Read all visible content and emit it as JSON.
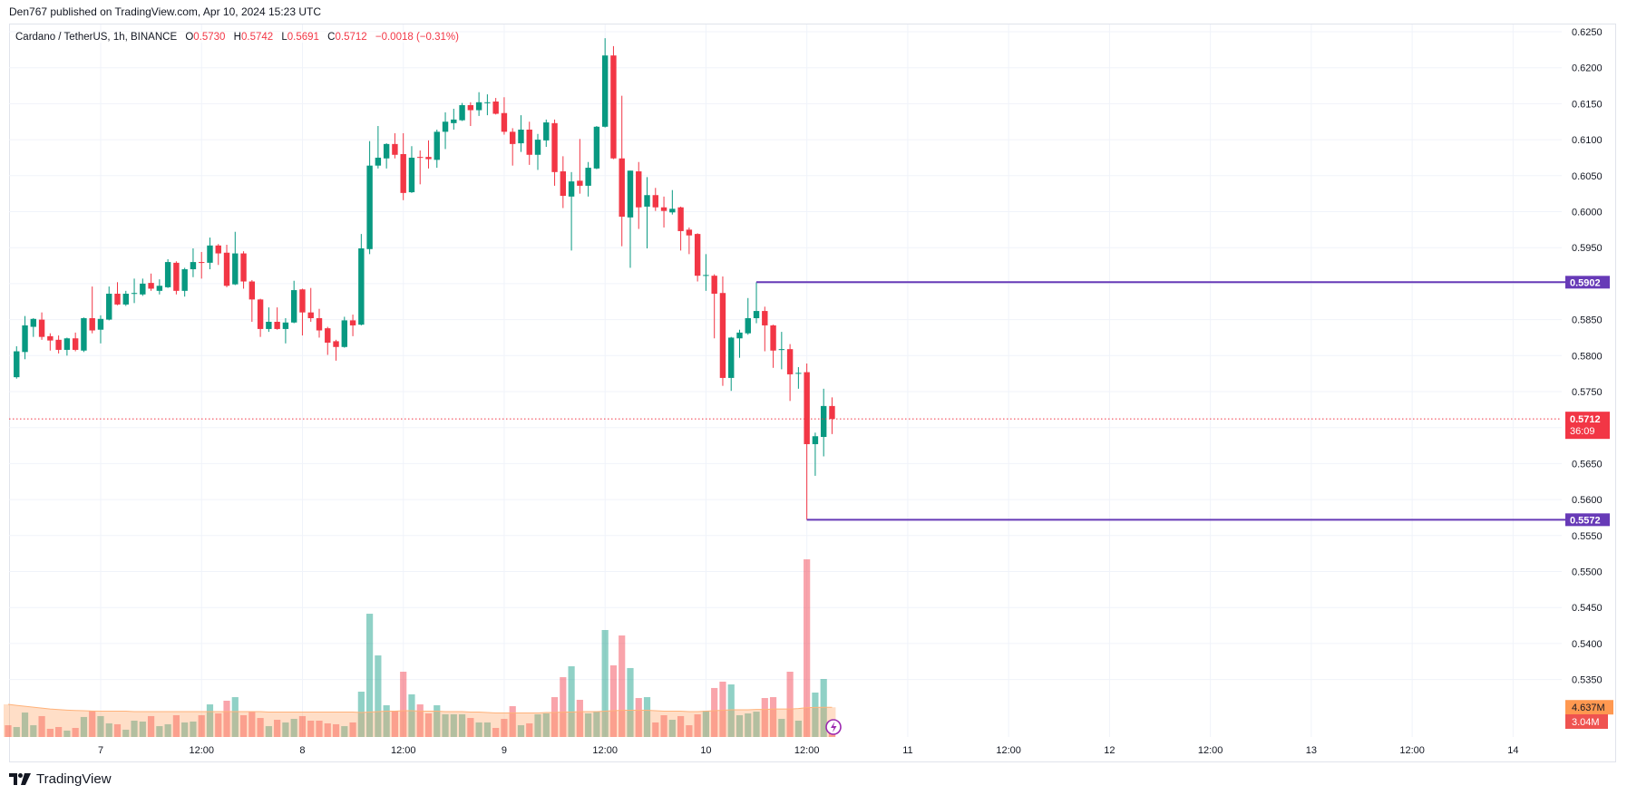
{
  "header": {
    "published": "Den767 published on TradingView.com, Apr 10, 2024 15:23 UTC"
  },
  "legend": {
    "symbol": "Cardano / TetherUS, 1h, BINANCE",
    "o_label": "O",
    "o": "0.5730",
    "h_label": "H",
    "h": "0.5742",
    "l_label": "L",
    "l": "0.5691",
    "c_label": "C",
    "c": "0.5712",
    "change": "−0.0018 (−0.31%)"
  },
  "brand": {
    "name": "TradingView"
  },
  "colors": {
    "up": "#089981",
    "down": "#F23645",
    "hline": "#673AB7",
    "ma": "#FF9850",
    "grid": "#f0f3fa"
  },
  "chart_data": {
    "type": "candlestick",
    "title": "Cardano / TetherUS, 1h, BINANCE",
    "interval": "1h",
    "ylim": [
      0.535,
      0.625
    ],
    "price_ticks": [
      "0.6250",
      "0.6200",
      "0.6150",
      "0.6100",
      "0.6050",
      "0.6000",
      "0.5950",
      "0.5850",
      "0.5800",
      "0.5750",
      "0.5650",
      "0.5600",
      "0.5550",
      "0.5500",
      "0.5450",
      "0.5400",
      "0.5350"
    ],
    "time_labels": [
      "7",
      "12:00",
      "8",
      "12:00",
      "9",
      "12:00",
      "10",
      "12:00",
      "11",
      "12:00",
      "12",
      "12:00",
      "13",
      "12:00",
      "14"
    ],
    "candles_ohlc": [
      [
        0.5798,
        0.58,
        0.5765,
        0.5769
      ],
      [
        0.577,
        0.5813,
        0.5768,
        0.5806
      ],
      [
        0.5805,
        0.5855,
        0.5795,
        0.5842
      ],
      [
        0.584,
        0.5852,
        0.5826,
        0.5851
      ],
      [
        0.585,
        0.586,
        0.5822,
        0.5826
      ],
      [
        0.5827,
        0.5831,
        0.5807,
        0.5821
      ],
      [
        0.5822,
        0.5828,
        0.5803,
        0.5808
      ],
      [
        0.5808,
        0.5825,
        0.58,
        0.5824
      ],
      [
        0.5824,
        0.5832,
        0.5806,
        0.5808
      ],
      [
        0.5807,
        0.5853,
        0.5805,
        0.5852
      ],
      [
        0.5852,
        0.5896,
        0.5831,
        0.5835
      ],
      [
        0.5836,
        0.5856,
        0.5817,
        0.5851
      ],
      [
        0.585,
        0.5896,
        0.5849,
        0.5886
      ],
      [
        0.5886,
        0.5902,
        0.587,
        0.5871
      ],
      [
        0.5871,
        0.589,
        0.5869,
        0.5886
      ],
      [
        0.5886,
        0.5907,
        0.5873,
        0.5887
      ],
      [
        0.5885,
        0.5907,
        0.5883,
        0.59
      ],
      [
        0.5901,
        0.5914,
        0.589,
        0.5893
      ],
      [
        0.589,
        0.5906,
        0.5885,
        0.5897
      ],
      [
        0.5895,
        0.5934,
        0.5894,
        0.593
      ],
      [
        0.5929,
        0.5931,
        0.5885,
        0.589
      ],
      [
        0.589,
        0.5922,
        0.5882,
        0.592
      ],
      [
        0.592,
        0.5949,
        0.5909,
        0.593
      ],
      [
        0.593,
        0.5944,
        0.5907,
        0.5929
      ],
      [
        0.5929,
        0.5964,
        0.592,
        0.5953
      ],
      [
        0.5953,
        0.5955,
        0.5926,
        0.5942
      ],
      [
        0.5943,
        0.5954,
        0.5895,
        0.5897
      ],
      [
        0.5899,
        0.5972,
        0.5898,
        0.5942
      ],
      [
        0.5942,
        0.5945,
        0.5893,
        0.5903
      ],
      [
        0.5903,
        0.5905,
        0.5847,
        0.5878
      ],
      [
        0.5878,
        0.5879,
        0.5826,
        0.5837
      ],
      [
        0.5837,
        0.5867,
        0.5833,
        0.5847
      ],
      [
        0.5847,
        0.5867,
        0.5836,
        0.5837
      ],
      [
        0.5837,
        0.5852,
        0.5817,
        0.5846
      ],
      [
        0.5846,
        0.5904,
        0.5845,
        0.5891
      ],
      [
        0.5892,
        0.5893,
        0.5828,
        0.586
      ],
      [
        0.586,
        0.5894,
        0.5847,
        0.5852
      ],
      [
        0.5852,
        0.5865,
        0.5825,
        0.5835
      ],
      [
        0.5838,
        0.584,
        0.5801,
        0.5818
      ],
      [
        0.582,
        0.5822,
        0.5793,
        0.5812
      ],
      [
        0.5812,
        0.5854,
        0.5811,
        0.5849
      ],
      [
        0.5849,
        0.5857,
        0.5827,
        0.5842
      ],
      [
        0.5843,
        0.5969,
        0.5842,
        0.5949
      ],
      [
        0.5948,
        0.6098,
        0.5941,
        0.6064
      ],
      [
        0.6064,
        0.6119,
        0.606,
        0.6075
      ],
      [
        0.6074,
        0.6095,
        0.606,
        0.6094
      ],
      [
        0.6094,
        0.6109,
        0.6074,
        0.6079
      ],
      [
        0.608,
        0.6109,
        0.6016,
        0.6026
      ],
      [
        0.6027,
        0.6091,
        0.6026,
        0.6075
      ],
      [
        0.6076,
        0.6085,
        0.6038,
        0.6075
      ],
      [
        0.6076,
        0.6099,
        0.606,
        0.6073
      ],
      [
        0.6072,
        0.6114,
        0.6061,
        0.6111
      ],
      [
        0.6111,
        0.6138,
        0.6087,
        0.6125
      ],
      [
        0.6123,
        0.6143,
        0.6114,
        0.6128
      ],
      [
        0.6127,
        0.6151,
        0.6126,
        0.6148
      ],
      [
        0.6148,
        0.6152,
        0.6119,
        0.6141
      ],
      [
        0.6141,
        0.6166,
        0.6133,
        0.6152
      ],
      [
        0.6151,
        0.6163,
        0.6134,
        0.6152
      ],
      [
        0.6153,
        0.6158,
        0.6135,
        0.6136
      ],
      [
        0.6137,
        0.6159,
        0.6107,
        0.6111
      ],
      [
        0.6111,
        0.6116,
        0.6064,
        0.6094
      ],
      [
        0.6095,
        0.6134,
        0.6083,
        0.6114
      ],
      [
        0.6114,
        0.6125,
        0.6065,
        0.6079
      ],
      [
        0.6079,
        0.6108,
        0.6058,
        0.61
      ],
      [
        0.6099,
        0.6128,
        0.609,
        0.6124
      ],
      [
        0.6123,
        0.6128,
        0.6036,
        0.6055
      ],
      [
        0.6056,
        0.6077,
        0.6005,
        0.6022
      ],
      [
        0.6021,
        0.6055,
        0.5946,
        0.6042
      ],
      [
        0.6043,
        0.6101,
        0.6025,
        0.6036
      ],
      [
        0.6036,
        0.6069,
        0.6021,
        0.6061
      ],
      [
        0.606,
        0.6119,
        0.6059,
        0.6118
      ],
      [
        0.6118,
        0.6241,
        0.6117,
        0.6217
      ],
      [
        0.6217,
        0.623,
        0.6073,
        0.6074
      ],
      [
        0.6074,
        0.6161,
        0.5952,
        0.5993
      ],
      [
        0.5992,
        0.6057,
        0.5922,
        0.6057
      ],
      [
        0.6056,
        0.6069,
        0.5976,
        0.6006
      ],
      [
        0.6007,
        0.6048,
        0.5949,
        0.6023
      ],
      [
        0.6023,
        0.6033,
        0.6001,
        0.6006
      ],
      [
        0.6006,
        0.6021,
        0.5978,
        0.6001
      ],
      [
        0.5999,
        0.603,
        0.5996,
        0.6004
      ],
      [
        0.6006,
        0.6007,
        0.5946,
        0.5973
      ],
      [
        0.5975,
        0.5978,
        0.5941,
        0.5967
      ],
      [
        0.5969,
        0.597,
        0.5903,
        0.5911
      ],
      [
        0.5911,
        0.5941,
        0.589,
        0.5912
      ],
      [
        0.5911,
        0.5913,
        0.5824,
        0.5886
      ],
      [
        0.5887,
        0.591,
        0.5758,
        0.5769
      ],
      [
        0.5769,
        0.5826,
        0.5751,
        0.5825
      ],
      [
        0.5824,
        0.5836,
        0.5797,
        0.5832
      ],
      [
        0.5831,
        0.588,
        0.5829,
        0.5852
      ],
      [
        0.5852,
        0.5902,
        0.5845,
        0.5862
      ],
      [
        0.5862,
        0.5868,
        0.5806,
        0.5842
      ],
      [
        0.5842,
        0.5843,
        0.5783,
        0.5807
      ],
      [
        0.5808,
        0.5833,
        0.5781,
        0.5809
      ],
      [
        0.5809,
        0.5816,
        0.5737,
        0.5774
      ],
      [
        0.5775,
        0.5784,
        0.5754,
        0.5776
      ],
      [
        0.5777,
        0.5789,
        0.5572,
        0.5677
      ],
      [
        0.5677,
        0.5693,
        0.5633,
        0.5688
      ],
      [
        0.5687,
        0.5754,
        0.566,
        0.573
      ],
      [
        0.573,
        0.5742,
        0.5691,
        0.5712
      ]
    ],
    "volume_m": [
      2.63,
      2.43,
      4.05,
      2.63,
      3.65,
      2.23,
      2.43,
      2.03,
      2.33,
      3.55,
      4.25,
      3.65,
      2.84,
      2.74,
      2.13,
      3.14,
      3.04,
      3.65,
      2.53,
      2.74,
      3.75,
      2.94,
      3.04,
      3.75,
      4.96,
      3.95,
      5.37,
      5.77,
      3.75,
      4.15,
      3.44,
      2.53,
      3.24,
      2.94,
      3.34,
      3.65,
      3.14,
      3.14,
      2.84,
      2.74,
      2.53,
      2.94,
      6.38,
      15.09,
      10.43,
      4.86,
      4.25,
      8.61,
      6.08,
      4.96,
      3.95,
      4.86,
      3.85,
      3.85,
      3.85,
      3.44,
      2.94,
      2.94,
      2.33,
      3.34,
      4.76,
      2.63,
      2.84,
      3.85,
      3.95,
      5.77,
      8.0,
      9.22,
      5.47,
      3.95,
      4.15,
      13.27,
      9.32,
      12.66,
      9.02,
      5.67,
      5.77,
      2.94,
      3.75,
      3.24,
      3.65,
      2.63,
      3.85,
      4.25,
      6.79,
      7.5,
      7.19,
      3.75,
      3.95,
      4.15,
      5.67,
      5.77,
      3.34,
      8.61,
      3.14,
      21.17,
      6.28,
      7.8,
      3.04
    ],
    "volume_ma_m": [
      4.96,
      4.85,
      4.75,
      4.65,
      4.55,
      4.45,
      4.38,
      4.32,
      4.28,
      4.25,
      4.22,
      4.2,
      4.2,
      4.2,
      4.2,
      4.15,
      4.15,
      4.15,
      4.15,
      4.15,
      4.15,
      4.15,
      4.15,
      4.15,
      4.15,
      4.15,
      4.15,
      4.15,
      4.15,
      4.15,
      4.15,
      4.1,
      4.1,
      4.1,
      4.1,
      4.1,
      4.1,
      4.1,
      4.1,
      4.1,
      4.1,
      4.1,
      4.05,
      4.1,
      4.15,
      4.2,
      4.2,
      4.25,
      4.25,
      4.2,
      4.2,
      4.2,
      4.15,
      4.15,
      4.15,
      4.1,
      4.1,
      4.05,
      4.0,
      4.0,
      4.0,
      4.0,
      4.0,
      4.0,
      4.05,
      4.05,
      4.1,
      4.1,
      4.15,
      4.15,
      4.15,
      4.2,
      4.25,
      4.3,
      4.3,
      4.3,
      4.3,
      4.25,
      4.2,
      4.2,
      4.2,
      4.15,
      4.15,
      4.2,
      4.25,
      4.3,
      4.35,
      4.35,
      4.35,
      4.4,
      4.4,
      4.45,
      4.45,
      4.45,
      4.5,
      4.6,
      4.62,
      4.63,
      4.637
    ],
    "hlines": [
      {
        "price": 0.5902,
        "label": "0.5902",
        "from_index": 89
      },
      {
        "price": 0.5572,
        "label": "0.5572",
        "from_index": 95
      }
    ],
    "last_price": {
      "price": 0.5712,
      "label": "0.5712",
      "countdown": "36:09"
    },
    "volume_labels": {
      "ma": "4.637M",
      "ma_value": 4.637,
      "last": "3.04M",
      "last_value": 3.04
    }
  }
}
